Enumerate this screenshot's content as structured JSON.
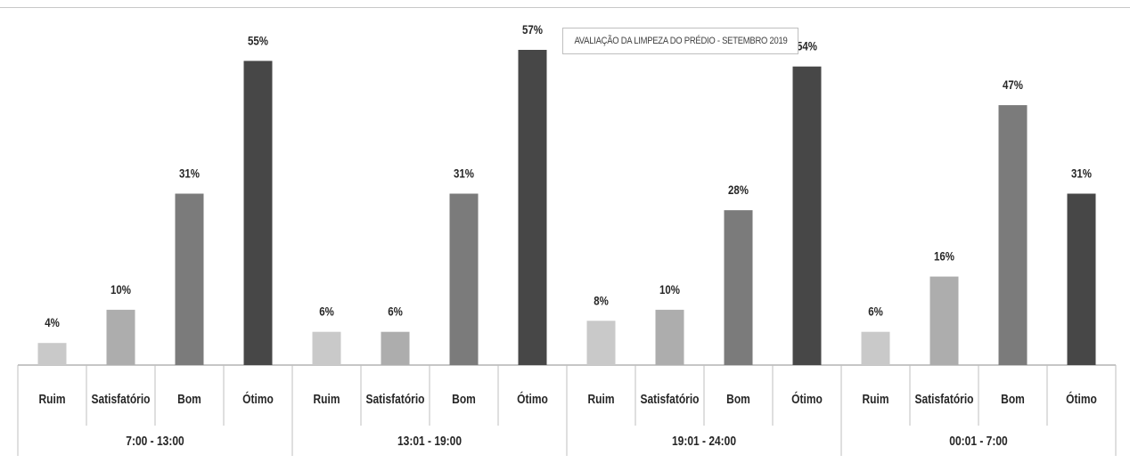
{
  "chart_data": {
    "type": "bar",
    "title": "AVALIAÇÃO DA LIMPEZA DO PRÉDIO - SETEMBRO 2019",
    "groups": [
      {
        "label": "7:00 - 13:00",
        "bars": [
          {
            "category": "Ruim",
            "value": 4,
            "label": "4%"
          },
          {
            "category": "Satisfatório",
            "value": 10,
            "label": "10%"
          },
          {
            "category": "Bom",
            "value": 31,
            "label": "31%"
          },
          {
            "category": "Ótimo",
            "value": 55,
            "label": "55%"
          }
        ]
      },
      {
        "label": "13:01 - 19:00",
        "bars": [
          {
            "category": "Ruim",
            "value": 6,
            "label": "6%"
          },
          {
            "category": "Satisfatório",
            "value": 6,
            "label": "6%"
          },
          {
            "category": "Bom",
            "value": 31,
            "label": "31%"
          },
          {
            "category": "Ótimo",
            "value": 57,
            "label": "57%"
          }
        ]
      },
      {
        "label": "19:01 - 24:00",
        "bars": [
          {
            "category": "Ruim",
            "value": 8,
            "label": "8%"
          },
          {
            "category": "Satisfatório",
            "value": 10,
            "label": "10%"
          },
          {
            "category": "Bom",
            "value": 28,
            "label": "28%"
          },
          {
            "category": "Ótimo",
            "value": 54,
            "label": "54%"
          }
        ]
      },
      {
        "label": "00:01 - 7:00",
        "bars": [
          {
            "category": "Ruim",
            "value": 6,
            "label": "6%"
          },
          {
            "category": "Satisfatório",
            "value": 16,
            "label": "16%"
          },
          {
            "category": "Bom",
            "value": 47,
            "label": "47%"
          },
          {
            "category": "Ótimo",
            "value": 31,
            "label": "31%"
          }
        ]
      }
    ],
    "ylim": [
      0,
      60
    ],
    "grid": false,
    "legend": "none",
    "colors": {
      "Ruim": "#c9c9c9",
      "Satisfatório": "#adadad",
      "Bom": "#7b7b7b",
      "Ótimo": "#474747"
    }
  }
}
